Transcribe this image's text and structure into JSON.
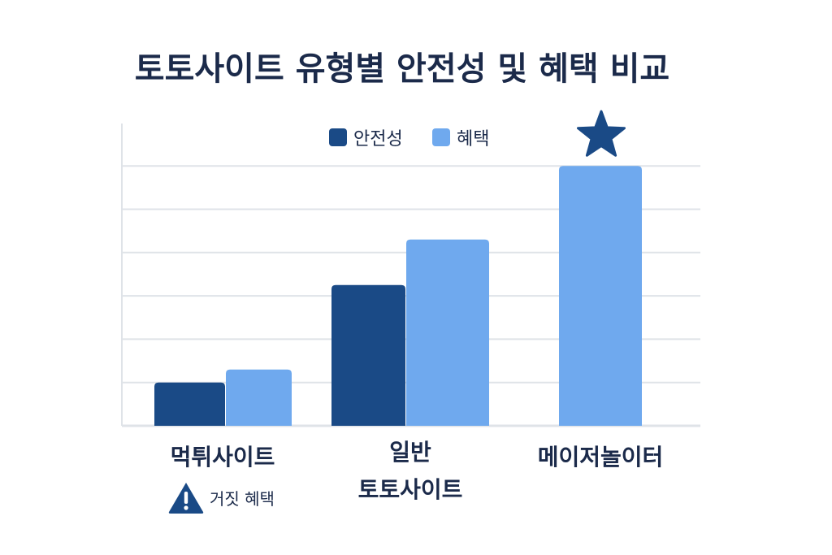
{
  "chart_data": {
    "type": "bar",
    "title": "토토사이트 유형별 안전성 및 혜택 비교",
    "categories": [
      [
        "먹튀사이트"
      ],
      [
        "일반",
        "토토사이트"
      ],
      [
        "메이저놀이터"
      ]
    ],
    "series": [
      {
        "name": "안전성",
        "color": "#1a4a86",
        "values": [
          1,
          3.25,
          null
        ]
      },
      {
        "name": "혜택",
        "color": "#6fa9ee",
        "values": [
          1.3,
          4.3,
          6
        ]
      }
    ],
    "ylim": [
      0,
      7
    ],
    "grid": true,
    "legend": "top-center",
    "annotations": [
      {
        "category": 0,
        "icon": "warning-icon",
        "text": "거짓 혜택"
      },
      {
        "category": 2,
        "icon": "star-icon"
      }
    ]
  }
}
